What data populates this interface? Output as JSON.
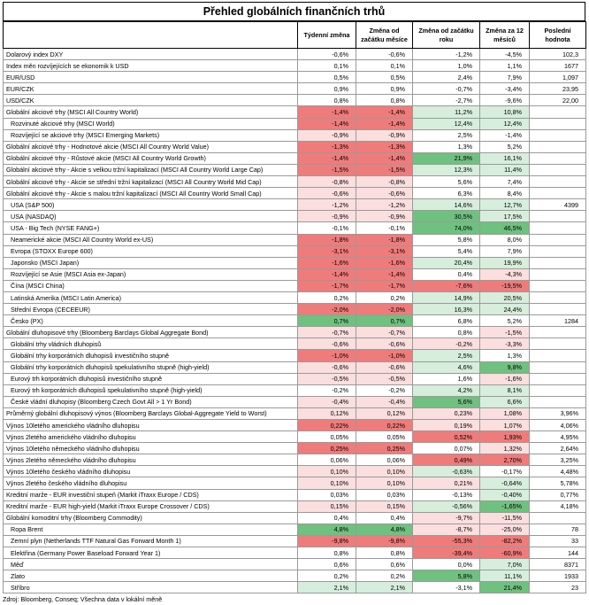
{
  "title": "Přehled globálních finančních trhů",
  "headers": [
    "",
    "Týdenní změna",
    "Změna od začátku měsíce",
    "Změna od začátku roku",
    "Změna za 12 měsíců",
    "Poslední hodnota"
  ],
  "colors": {
    "neg_strong": "#f07b7b",
    "neg_light": "#fbdede",
    "pos_strong": "#6fc17f",
    "pos_light": "#d6eedb"
  },
  "groups": [
    {
      "rows": [
        {
          "label": "Dolarový index DXY",
          "indent": false,
          "values": [
            "-0,6%",
            "-0,6%",
            "-1,2%",
            "-4,5%",
            "102,3"
          ],
          "shade": [
            0,
            0,
            0,
            0
          ]
        },
        {
          "label": "Index měn rozvíjejících se ekonomik k USD",
          "indent": false,
          "values": [
            "0,1%",
            "0,1%",
            "1,0%",
            "1,1%",
            "1677"
          ],
          "shade": [
            0,
            0,
            0,
            0
          ]
        },
        {
          "label": "EUR/USD",
          "indent": false,
          "values": [
            "0,5%",
            "0,5%",
            "2,4%",
            "7,9%",
            "1,097"
          ],
          "shade": [
            0,
            0,
            0,
            0
          ]
        },
        {
          "label": "EUR/CZK",
          "indent": false,
          "values": [
            "0,9%",
            "0,9%",
            "-0,7%",
            "-3,4%",
            "23,95"
          ],
          "shade": [
            0,
            0,
            0,
            0
          ]
        },
        {
          "label": "USD/CZK",
          "indent": false,
          "values": [
            "0,8%",
            "0,8%",
            "-2,7%",
            "-9,6%",
            "22,00"
          ],
          "shade": [
            0,
            0,
            0,
            0
          ]
        }
      ]
    },
    {
      "rows": [
        {
          "label": "Globální akciové trhy (MSCI All Country World)",
          "indent": false,
          "values": [
            "-1,4%",
            "-1,4%",
            "11,2%",
            "10,8%",
            ""
          ],
          "shade": [
            -2,
            -2,
            1,
            1
          ]
        },
        {
          "label": "Rozvinuté akciové trhy (MSCI World)",
          "indent": true,
          "values": [
            "-1,4%",
            "-1,4%",
            "12,4%",
            "12,4%",
            ""
          ],
          "shade": [
            -2,
            -2,
            1,
            1
          ]
        },
        {
          "label": "Rozvíjející se akciové trhy (MSCI Emerging Markets)",
          "indent": true,
          "values": [
            "-0,9%",
            "-0,9%",
            "2,5%",
            "-1,4%",
            ""
          ],
          "shade": [
            -1,
            -1,
            0,
            0
          ]
        },
        {
          "label": "Globální akciové trhy - Hodnotové akcie (MSCI All Country World Value)",
          "indent": false,
          "values": [
            "-1,3%",
            "-1,3%",
            "1,3%",
            "5,2%",
            ""
          ],
          "shade": [
            -2,
            -2,
            0,
            0
          ]
        },
        {
          "label": "Globální akciové trhy - Růstové akcie (MSCI All Country World Growth)",
          "indent": false,
          "values": [
            "-1,4%",
            "-1,4%",
            "21,9%",
            "16,1%",
            ""
          ],
          "shade": [
            -2,
            -2,
            2,
            1
          ]
        },
        {
          "label": "Globální akciové trhy - Akcie s velkou tržní kapitalizací (MSCI All Country World Large Cap)",
          "indent": false,
          "values": [
            "-1,5%",
            "-1,5%",
            "12,3%",
            "11,4%",
            ""
          ],
          "shade": [
            -2,
            -2,
            1,
            1
          ]
        },
        {
          "label": "Globální akciové trhy - Akcie se střední tržní kapitalizací (MSCI All Country World Mid Cap)",
          "indent": false,
          "values": [
            "-0,8%",
            "-0,8%",
            "5,6%",
            "7,4%",
            ""
          ],
          "shade": [
            -1,
            -1,
            0,
            0
          ]
        },
        {
          "label": "Globální akciové trhy - Akcie s malou tržní kapitalizací (MSCI All Country World Small Cap)",
          "indent": false,
          "values": [
            "-0,6%",
            "-0,6%",
            "6,3%",
            "8,4%",
            ""
          ],
          "shade": [
            -1,
            -1,
            0,
            0
          ]
        },
        {
          "label": "USA (S&P 500)",
          "indent": true,
          "values": [
            "-1,2%",
            "-1,2%",
            "14,6%",
            "12,7%",
            "4399"
          ],
          "shade": [
            -1,
            -1,
            1,
            1
          ]
        },
        {
          "label": "USA (NASDAQ)",
          "indent": true,
          "values": [
            "-0,9%",
            "-0,9%",
            "30,5%",
            "17,5%",
            ""
          ],
          "shade": [
            -1,
            -1,
            2,
            1
          ]
        },
        {
          "label": "USA - Big Tech (NYSE FANG+)",
          "indent": true,
          "values": [
            "-0,1%",
            "-0,1%",
            "74,0%",
            "46,5%",
            ""
          ],
          "shade": [
            0,
            0,
            2,
            2
          ]
        },
        {
          "label": "Neamerické akcie (MSCI All Country World ex-US)",
          "indent": true,
          "values": [
            "-1,8%",
            "-1,8%",
            "5,8%",
            "8,0%",
            ""
          ],
          "shade": [
            -2,
            -2,
            0,
            0
          ]
        },
        {
          "label": "Evropa (STOXX Europe 600)",
          "indent": true,
          "values": [
            "-3,1%",
            "-3,1%",
            "5,4%",
            "7,9%",
            ""
          ],
          "shade": [
            -2,
            -2,
            0,
            0
          ]
        },
        {
          "label": "Japonsko (MSCI Japan)",
          "indent": true,
          "values": [
            "-1,6%",
            "-1,6%",
            "20,4%",
            "19,9%",
            ""
          ],
          "shade": [
            -2,
            -2,
            1,
            1
          ]
        },
        {
          "label": "Rozvíjející se Asie (MSCI Asia ex-Japan)",
          "indent": true,
          "values": [
            "-1,4%",
            "-1,4%",
            "0,4%",
            "-4,3%",
            ""
          ],
          "shade": [
            -2,
            -2,
            0,
            -1
          ]
        },
        {
          "label": "Čína (MSCI China)",
          "indent": true,
          "values": [
            "-1,7%",
            "-1,7%",
            "-7,6%",
            "-19,5%",
            ""
          ],
          "shade": [
            -2,
            -2,
            -2,
            -2
          ]
        },
        {
          "label": "Latinská Amerika (MSCI Latin America)",
          "indent": true,
          "values": [
            "0,2%",
            "0,2%",
            "14,9%",
            "20,5%",
            ""
          ],
          "shade": [
            0,
            0,
            1,
            1
          ]
        },
        {
          "label": "Střední Evropa (CECEEUR)",
          "indent": true,
          "values": [
            "-2,0%",
            "-2,0%",
            "16,3%",
            "24,4%",
            ""
          ],
          "shade": [
            -2,
            -2,
            1,
            1
          ]
        },
        {
          "label": "Česko (PX)",
          "indent": true,
          "values": [
            "0,7%",
            "0,7%",
            "6,8%",
            "5,2%",
            "1284"
          ],
          "shade": [
            2,
            2,
            0,
            0
          ]
        }
      ]
    },
    {
      "rows": [
        {
          "label": "Globální dluhopisové trhy (Bloomberg Barclays Global Aggregate Bond)",
          "indent": false,
          "values": [
            "-0,7%",
            "-0,7%",
            "0,8%",
            "-1,5%",
            ""
          ],
          "shade": [
            -1,
            -1,
            0,
            -1
          ]
        },
        {
          "label": "Globální trhy vládních dluhopisů",
          "indent": true,
          "values": [
            "-0,6%",
            "-0,6%",
            "-0,2%",
            "-3,3%",
            ""
          ],
          "shade": [
            -1,
            -1,
            -1,
            -1
          ]
        },
        {
          "label": "Globální trhy korporátních dluhopisů investičního stupně",
          "indent": true,
          "values": [
            "-1,0%",
            "-1,0%",
            "2,5%",
            "1,3%",
            ""
          ],
          "shade": [
            -2,
            -2,
            1,
            0
          ]
        },
        {
          "label": "Globální trhy korporátních dluhopisů spekulativního stupně (high-yield)",
          "indent": true,
          "values": [
            "-0,6%",
            "-0,6%",
            "4,6%",
            "9,8%",
            ""
          ],
          "shade": [
            -1,
            -1,
            1,
            2
          ]
        },
        {
          "label": "Eurový trh korporátních dluhopisů investičního stupně",
          "indent": true,
          "values": [
            "-0,5%",
            "-0,5%",
            "1,6%",
            "-1,6%",
            ""
          ],
          "shade": [
            -1,
            -1,
            0,
            -1
          ]
        },
        {
          "label": "Eurový trh korporátních dluhopisů spekulativního stupně (high-yield)",
          "indent": true,
          "values": [
            "-0,2%",
            "-0,2%",
            "4,2%",
            "8,1%",
            ""
          ],
          "shade": [
            0,
            0,
            1,
            1
          ]
        },
        {
          "label": "České vládní dluhopisy (Bloomberg Czech Govt All > 1 Yr Bond)",
          "indent": true,
          "values": [
            "-0,4%",
            "-0,4%",
            "5,6%",
            "6,6%",
            ""
          ],
          "shade": [
            -1,
            -1,
            2,
            1
          ]
        }
      ]
    },
    {
      "rows": [
        {
          "label": "Průměrný globální dluhopisový výnos (Bloomberg Barclays Global-Aggregate Yield to Worst)",
          "indent": false,
          "values": [
            "0,12%",
            "0,12%",
            "0,23%",
            "1,08%",
            "3,96%"
          ],
          "shade": [
            -1,
            -1,
            -1,
            -1
          ]
        },
        {
          "label": "Výnos 10letého amerického vládního dluhopisu",
          "indent": false,
          "values": [
            "0,22%",
            "0,22%",
            "0,19%",
            "1,07%",
            "4,06%"
          ],
          "shade": [
            -2,
            -2,
            -1,
            -1
          ]
        },
        {
          "label": "Výnos 2letého amerického vládního dluhopisu",
          "indent": false,
          "values": [
            "0,05%",
            "0,05%",
            "0,52%",
            "1,93%",
            "4,95%"
          ],
          "shade": [
            0,
            0,
            -2,
            -2
          ]
        },
        {
          "label": "Výnos 10letého německého vládního dluhopisu",
          "indent": false,
          "values": [
            "0,25%",
            "0,25%",
            "0,07%",
            "1,32%",
            "2,64%"
          ],
          "shade": [
            -2,
            -2,
            0,
            -1
          ]
        },
        {
          "label": "Výnos 2letého německého vládního dluhopisu",
          "indent": false,
          "values": [
            "0,06%",
            "0,06%",
            "0,49%",
            "2,70%",
            "3,25%"
          ],
          "shade": [
            0,
            0,
            -2,
            -2
          ]
        },
        {
          "label": "Výnos 10letého českého vládního dluhopisu",
          "indent": false,
          "values": [
            "0,10%",
            "0,10%",
            "-0,63%",
            "-0,17%",
            "4,48%"
          ],
          "shade": [
            -1,
            -1,
            1,
            0
          ]
        },
        {
          "label": "Výnos 2letého českého vládního dluhopisu",
          "indent": false,
          "values": [
            "0,10%",
            "0,10%",
            "0,21%",
            "-0,64%",
            "5,78%"
          ],
          "shade": [
            -1,
            -1,
            -1,
            1
          ]
        },
        {
          "label": "Kreditní marže - EUR investiční stupeň (Markit iTraxx Europe / CDS)",
          "indent": false,
          "values": [
            "0,03%",
            "0,03%",
            "-0,13%",
            "-0,40%",
            "0,77%"
          ],
          "shade": [
            0,
            0,
            0,
            1
          ]
        },
        {
          "label": "Kreditní marže - EUR high-yield (Markit iTraxx Europe Crossover / CDS)",
          "indent": false,
          "values": [
            "0,15%",
            "0,15%",
            "-0,56%",
            "-1,65%",
            "4,18%"
          ],
          "shade": [
            -1,
            -1,
            1,
            2
          ]
        }
      ]
    },
    {
      "rows": [
        {
          "label": "Globální komoditní trhy (Bloomberg Commodity)",
          "indent": false,
          "values": [
            "0,4%",
            "0,4%",
            "-9,7%",
            "-11,5%",
            ""
          ],
          "shade": [
            0,
            0,
            -1,
            -1
          ]
        },
        {
          "label": "Ropa Brent",
          "indent": true,
          "values": [
            "4,8%",
            "4,8%",
            "-8,7%",
            "-25,0%",
            "78"
          ],
          "shade": [
            2,
            2,
            -1,
            -1
          ]
        },
        {
          "label": "Zemní plyn (Netherlands TTF Natural Gas Forward Month 1)",
          "indent": true,
          "values": [
            "-9,8%",
            "-9,8%",
            "-55,3%",
            "-82,2%",
            "33"
          ],
          "shade": [
            -2,
            -2,
            -2,
            -2
          ]
        },
        {
          "label": "Elektřina (Germany Power Baseload Forward Year 1)",
          "indent": true,
          "values": [
            "0,8%",
            "0,8%",
            "-39,4%",
            "-60,9%",
            "144"
          ],
          "shade": [
            0,
            0,
            -2,
            -2
          ]
        },
        {
          "label": "Měď",
          "indent": true,
          "values": [
            "0,6%",
            "0,6%",
            "0,0%",
            "7,0%",
            "8371"
          ],
          "shade": [
            0,
            0,
            0,
            1
          ]
        },
        {
          "label": "Zlato",
          "indent": true,
          "values": [
            "0,2%",
            "0,2%",
            "5,8%",
            "11,1%",
            "1933"
          ],
          "shade": [
            0,
            0,
            2,
            1
          ]
        },
        {
          "label": "Stříbro",
          "indent": true,
          "values": [
            "2,1%",
            "2,1%",
            "-3,1%",
            "21,4%",
            "23"
          ],
          "shade": [
            1,
            1,
            0,
            2
          ]
        }
      ]
    }
  ],
  "source": "Zdroj: Bloomberg, Conseq; Všechna data v lokální měně"
}
